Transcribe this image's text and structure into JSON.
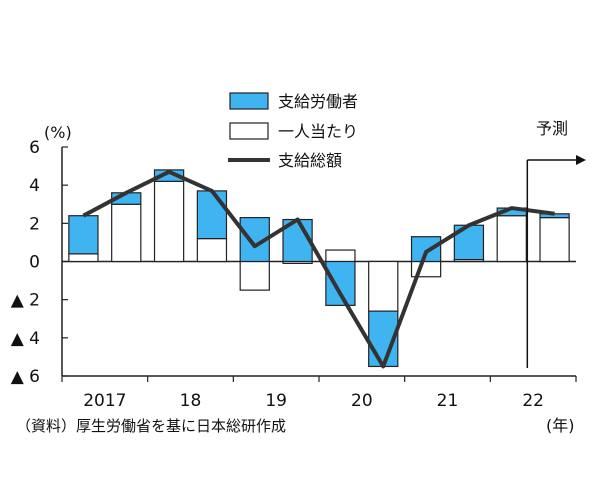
{
  "chart_data": {
    "type": "bar",
    "title": "",
    "y_unit_label": "(%)",
    "x_unit_label": "(年)",
    "source_note": "（資料）厚生労働省を基に日本総研作成",
    "forecast_label": "予測",
    "ylim": [
      -6,
      6
    ],
    "y_ticks": [
      6,
      4,
      2,
      0,
      -2,
      -4,
      -6
    ],
    "y_tick_labels": [
      "6",
      "4",
      "2",
      "0",
      "▲ 2",
      "▲ 4",
      "▲ 6"
    ],
    "x_tick_labels": [
      "2017",
      "18",
      "19",
      "20",
      "21",
      "22"
    ],
    "legend": [
      {
        "name": "支給労働者",
        "kind": "bar",
        "color": "#40B4F0"
      },
      {
        "name": "一人当たり",
        "kind": "bar",
        "color": "#ffffff"
      },
      {
        "name": "支給総額",
        "kind": "line",
        "color": "#333333"
      }
    ],
    "periods": [
      "2017H1",
      "2017H2",
      "2018H1",
      "2018H2",
      "2019H1",
      "2019H2",
      "2020H1",
      "2020H2",
      "2021H1",
      "2021H2",
      "2022H1",
      "2022H2"
    ],
    "series": [
      {
        "name": "支給労働者",
        "values": [
          2.0,
          0.6,
          0.6,
          2.5,
          2.3,
          2.2,
          -2.3,
          -2.9,
          1.3,
          1.8,
          0.4,
          0.2
        ]
      },
      {
        "name": "一人当たり",
        "values": [
          0.4,
          3.0,
          4.2,
          1.2,
          -1.5,
          -0.1,
          0.6,
          -2.6,
          -0.8,
          0.1,
          2.4,
          2.3
        ]
      },
      {
        "name": "支給総額",
        "values": [
          2.4,
          3.6,
          4.7,
          3.7,
          0.8,
          2.2,
          -1.7,
          -5.5,
          0.5,
          1.9,
          2.8,
          2.5
        ]
      }
    ],
    "forecast_from_period": "2022H1",
    "grid": false
  }
}
